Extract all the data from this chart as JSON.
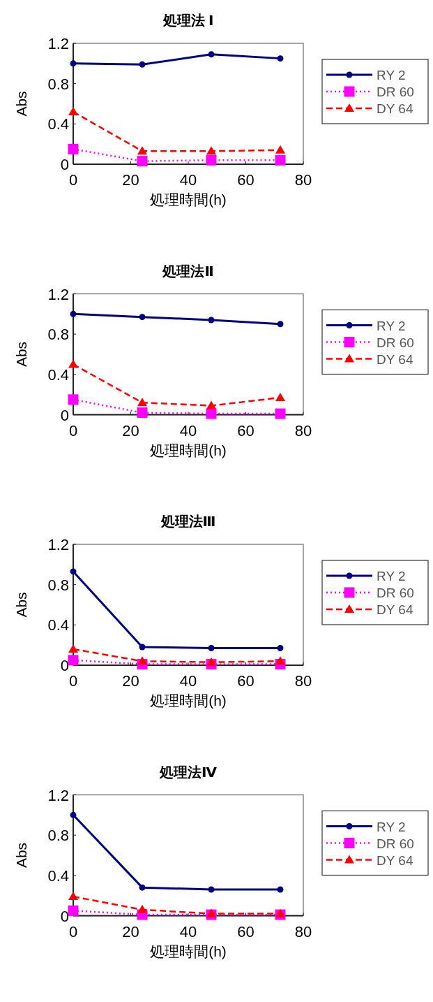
{
  "chart_data": [
    {
      "type": "line",
      "title": "処理法 Ⅰ",
      "xlabel": "処理時間(h)",
      "ylabel": "Abs",
      "x": [
        0,
        24,
        48,
        72
      ],
      "xlim": [
        0,
        80
      ],
      "xticks": [
        0,
        20,
        40,
        60,
        80
      ],
      "ylim": [
        0,
        1.2
      ],
      "yticks": [
        0,
        0.4,
        0.8,
        1.2
      ],
      "legend": "right",
      "series": [
        {
          "name": "RY 2",
          "color": "#000080",
          "marker": "circle",
          "line_style": "solid",
          "values": [
            1.0,
            0.99,
            1.09,
            1.05
          ]
        },
        {
          "name": "DR 60",
          "color": "#ff00ff",
          "marker": "square",
          "line_style": "dotted",
          "values": [
            0.15,
            0.03,
            0.04,
            0.04
          ]
        },
        {
          "name": "DY 64",
          "color": "#ff0000",
          "marker": "triangle",
          "line_style": "dashed",
          "values": [
            0.52,
            0.13,
            0.13,
            0.14
          ]
        }
      ]
    },
    {
      "type": "line",
      "title": "処理法Ⅱ",
      "xlabel": "処理時間(h)",
      "ylabel": "Abs",
      "x": [
        0,
        24,
        48,
        72
      ],
      "xlim": [
        0,
        80
      ],
      "xticks": [
        0,
        20,
        40,
        60,
        80
      ],
      "ylim": [
        0,
        1.2
      ],
      "yticks": [
        0,
        0.4,
        0.8,
        1.2
      ],
      "legend": "right",
      "series": [
        {
          "name": "RY 2",
          "color": "#000080",
          "marker": "circle",
          "line_style": "solid",
          "values": [
            1.0,
            0.97,
            0.94,
            0.9
          ]
        },
        {
          "name": "DR 60",
          "color": "#ff00ff",
          "marker": "square",
          "line_style": "dotted",
          "values": [
            0.15,
            0.02,
            0.01,
            0.01
          ]
        },
        {
          "name": "DY 64",
          "color": "#ff0000",
          "marker": "triangle",
          "line_style": "dashed",
          "values": [
            0.5,
            0.12,
            0.09,
            0.17
          ]
        }
      ]
    },
    {
      "type": "line",
      "title": "処理法Ⅲ",
      "xlabel": "処理時間(h)",
      "ylabel": "Abs",
      "x": [
        0,
        24,
        48,
        72
      ],
      "xlim": [
        0,
        80
      ],
      "xticks": [
        0,
        20,
        40,
        60,
        80
      ],
      "ylim": [
        0,
        1.2
      ],
      "yticks": [
        0,
        0.4,
        0.8,
        1.2
      ],
      "legend": "right",
      "series": [
        {
          "name": "RY 2",
          "color": "#000080",
          "marker": "circle",
          "line_style": "solid",
          "values": [
            0.93,
            0.18,
            0.17,
            0.17
          ]
        },
        {
          "name": "DR 60",
          "color": "#ff00ff",
          "marker": "square",
          "line_style": "dotted",
          "values": [
            0.05,
            0.01,
            0.01,
            0.01
          ]
        },
        {
          "name": "DY 64",
          "color": "#ff0000",
          "marker": "triangle",
          "line_style": "dashed",
          "values": [
            0.16,
            0.04,
            0.03,
            0.04
          ]
        }
      ]
    },
    {
      "type": "line",
      "title": "処理法Ⅳ",
      "xlabel": "処理時間(h)",
      "ylabel": "Abs",
      "x": [
        0,
        24,
        48,
        72
      ],
      "xlim": [
        0,
        80
      ],
      "xticks": [
        0,
        20,
        40,
        60,
        80
      ],
      "ylim": [
        0,
        1.2
      ],
      "yticks": [
        0,
        0.4,
        0.8,
        1.2
      ],
      "legend": "right",
      "series": [
        {
          "name": "RY 2",
          "color": "#000080",
          "marker": "circle",
          "line_style": "solid",
          "values": [
            1.0,
            0.28,
            0.26,
            0.26
          ]
        },
        {
          "name": "DR 60",
          "color": "#ff00ff",
          "marker": "square",
          "line_style": "dotted",
          "values": [
            0.05,
            0.01,
            0.01,
            0.01
          ]
        },
        {
          "name": "DY 64",
          "color": "#ff0000",
          "marker": "triangle",
          "line_style": "dashed",
          "values": [
            0.19,
            0.06,
            0.02,
            0.02
          ]
        }
      ]
    }
  ]
}
